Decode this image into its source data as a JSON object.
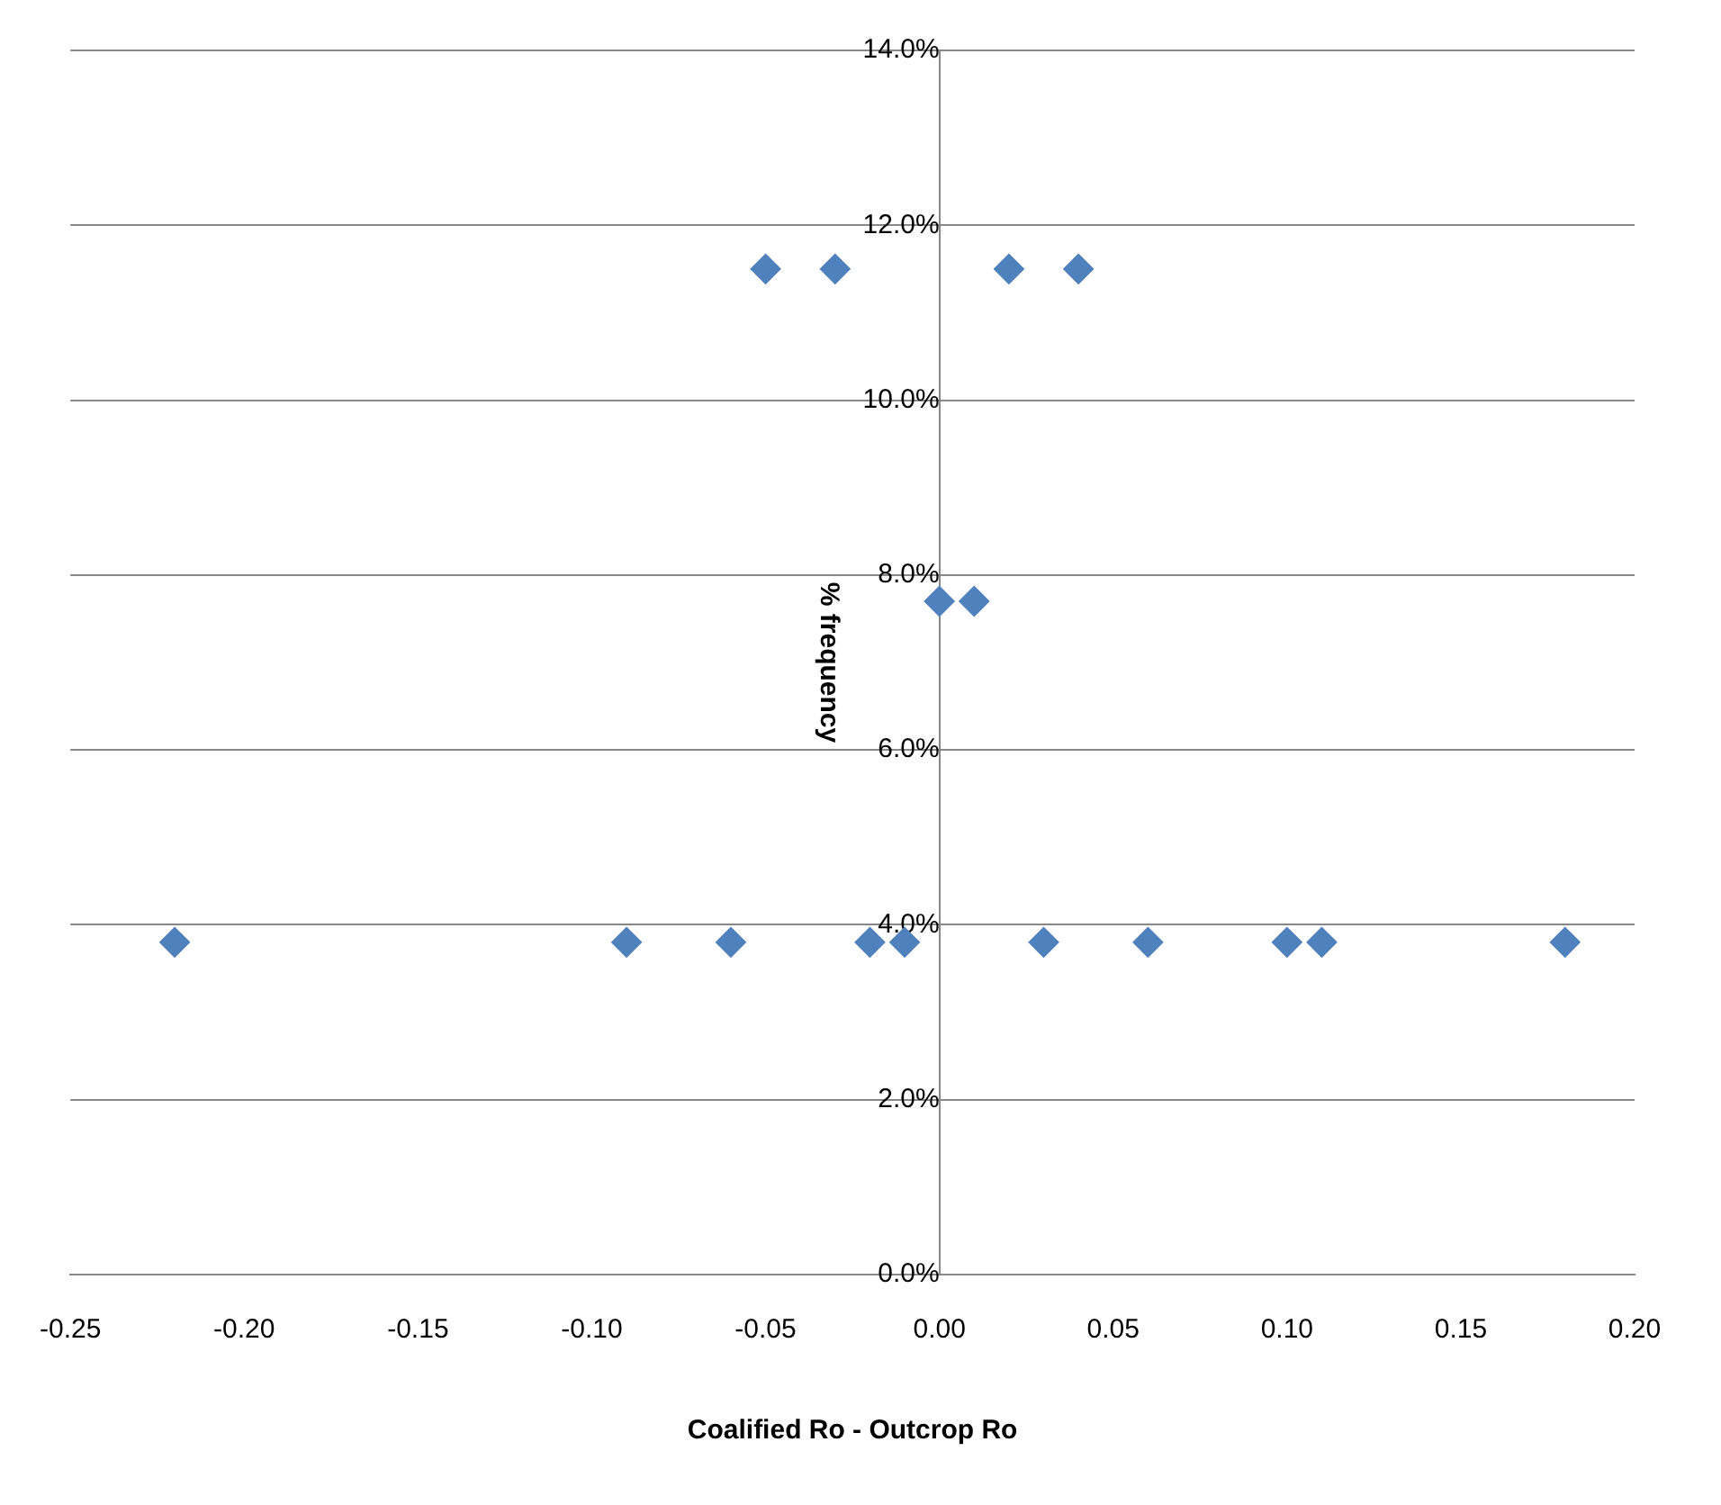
{
  "chart_data": {
    "type": "scatter",
    "xlabel": "Coalified Ro - Outcrop Ro",
    "ylabel": "% frequency",
    "series": [
      {
        "color": "#4f81bd",
        "x": [
          -0.22,
          -0.09,
          -0.06,
          -0.02,
          -0.01,
          0.03,
          0.06,
          0.1,
          0.11,
          0.18,
          -0.05,
          -0.03,
          0.02,
          0.04,
          0.0,
          0.01
        ],
        "values": [
          3.8,
          3.8,
          3.8,
          3.8,
          3.8,
          3.8,
          3.8,
          3.8,
          3.8,
          3.8,
          11.5,
          11.5,
          11.5,
          11.5,
          7.7,
          7.7
        ]
      }
    ],
    "xlim": [
      -0.25,
      0.2
    ],
    "xticks": [
      {
        "value": -0.25,
        "label": "-0.25"
      },
      {
        "value": -0.2,
        "label": "-0.20"
      },
      {
        "value": -0.15,
        "label": "-0.15"
      },
      {
        "value": -0.1,
        "label": "-0.10"
      },
      {
        "value": -0.05,
        "label": "-0.05"
      },
      {
        "value": 0,
        "label": "0.00"
      },
      {
        "value": 0.05,
        "label": "0.05"
      },
      {
        "value": 0.1,
        "label": "0.10"
      },
      {
        "value": 0.15,
        "label": "0.15"
      },
      {
        "value": 0.2,
        "label": "0.20"
      }
    ],
    "ylim": [
      0,
      14
    ],
    "yticks": [
      {
        "value": 0,
        "label": "0.0%"
      },
      {
        "value": 2,
        "label": "2.0%"
      },
      {
        "value": 4,
        "label": "4.0%"
      },
      {
        "value": 6,
        "label": "6.0%"
      },
      {
        "value": 8,
        "label": "8.0%"
      },
      {
        "value": 10,
        "label": "10.0%"
      },
      {
        "value": 12,
        "label": "12.0%"
      },
      {
        "value": 14,
        "label": "14.0%"
      }
    ],
    "grid": "y",
    "marker": "diamond",
    "legend": false
  }
}
